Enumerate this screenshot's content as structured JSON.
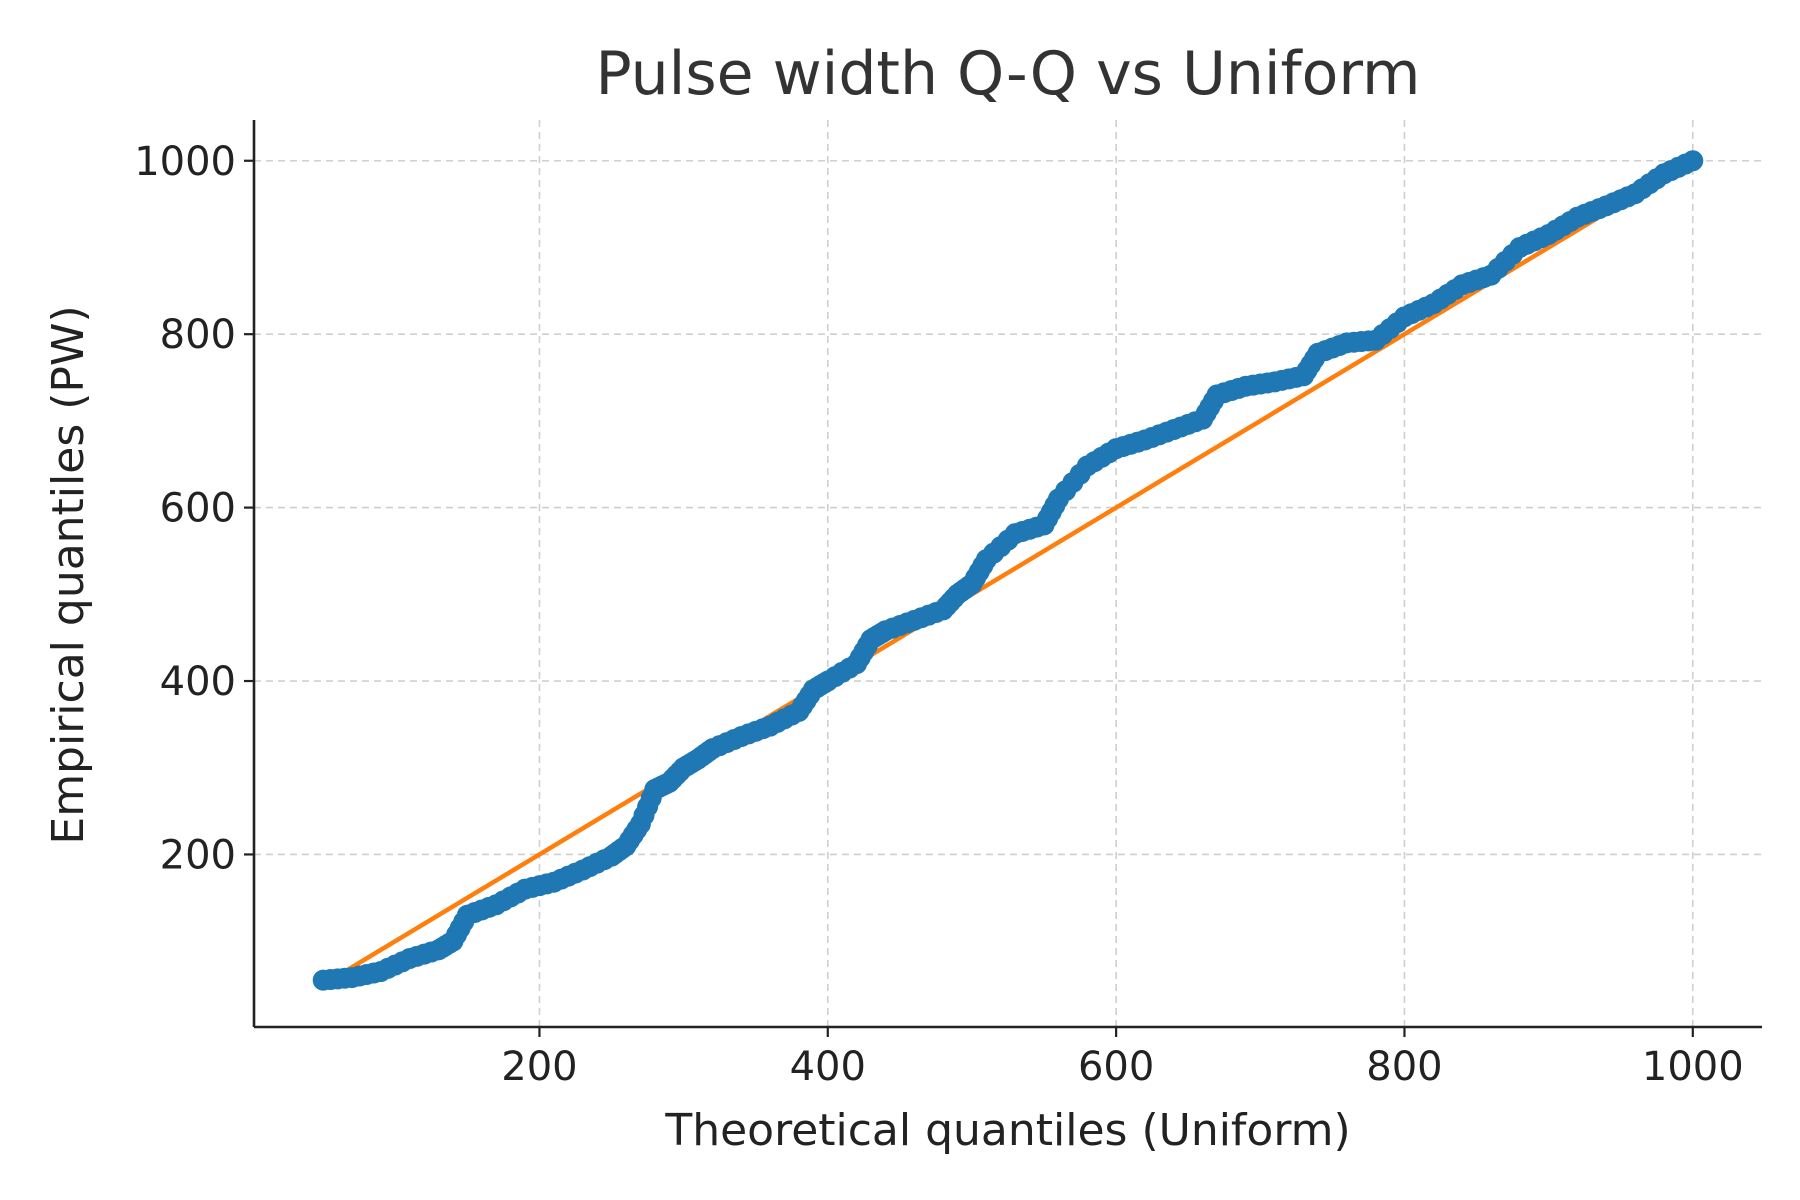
{
  "chart_data": {
    "type": "scatter",
    "title": "Pulse width Q-Q vs Uniform",
    "xlabel": "Theoretical quantiles (Uniform)",
    "ylabel": "Empirical quantiles (PW)",
    "xlim": [
      2,
      1048
    ],
    "ylim": [
      1,
      1047
    ],
    "xticks": [
      200,
      400,
      600,
      800,
      1000
    ],
    "yticks": [
      200,
      400,
      600,
      800,
      1000
    ],
    "grid": true,
    "colors": {
      "points": "#1f77b4",
      "line": "#ff7f0e"
    },
    "series": [
      {
        "type": "scatter",
        "x": [
          50,
          70,
          90,
          110,
          130,
          140,
          150,
          170,
          190,
          210,
          230,
          250,
          260,
          270,
          280,
          290,
          300,
          310,
          320,
          340,
          360,
          380,
          390,
          400,
          420,
          430,
          440,
          460,
          480,
          490,
          500,
          510,
          530,
          550,
          560,
          580,
          600,
          620,
          640,
          660,
          670,
          690,
          710,
          730,
          740,
          760,
          780,
          800,
          820,
          840,
          860,
          880,
          900,
          920,
          940,
          960,
          980,
          1000
        ],
        "y": [
          55,
          58,
          65,
          80,
          90,
          100,
          130,
          142,
          160,
          168,
          182,
          198,
          210,
          235,
          275,
          283,
          300,
          310,
          322,
          336,
          348,
          365,
          390,
          400,
          420,
          448,
          458,
          470,
          482,
          500,
          512,
          540,
          570,
          580,
          610,
          648,
          668,
          678,
          690,
          702,
          730,
          740,
          745,
          752,
          778,
          790,
          793,
          820,
          835,
          857,
          868,
          900,
          915,
          935,
          948,
          962,
          985,
          1000
        ]
      },
      {
        "type": "line",
        "x": [
          50,
          1000
        ],
        "y": [
          50,
          1000
        ]
      }
    ]
  }
}
